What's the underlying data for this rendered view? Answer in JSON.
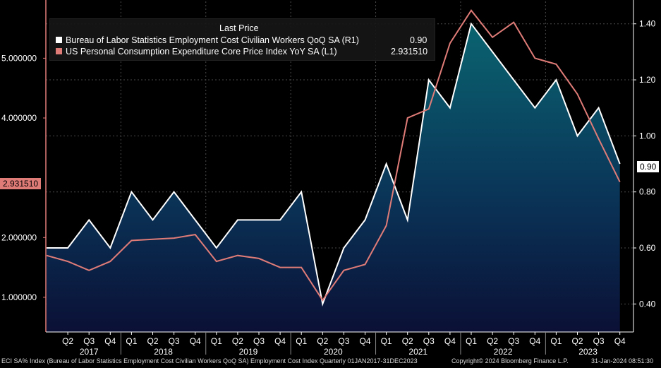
{
  "chart_data": {
    "type": "line",
    "categories": [
      "Q1 2017",
      "Q2 2017",
      "Q3 2017",
      "Q4 2017",
      "Q1 2018",
      "Q2 2018",
      "Q3 2018",
      "Q4 2018",
      "Q1 2019",
      "Q2 2019",
      "Q3 2019",
      "Q4 2019",
      "Q1 2020",
      "Q2 2020",
      "Q3 2020",
      "Q4 2020",
      "Q1 2021",
      "Q2 2021",
      "Q3 2021",
      "Q4 2021",
      "Q1 2022",
      "Q2 2022",
      "Q3 2022",
      "Q4 2022",
      "Q1 2023",
      "Q2 2023",
      "Q3 2023",
      "Q4 2023"
    ],
    "x_tick_labels": [
      "",
      "Q2",
      "Q3",
      "Q4",
      "Q1",
      "Q2",
      "Q3",
      "Q4",
      "Q1",
      "Q2",
      "Q3",
      "Q4",
      "Q1",
      "Q2",
      "Q3",
      "Q4",
      "Q1",
      "Q2",
      "Q3",
      "Q4",
      "Q1",
      "Q2",
      "Q3",
      "Q4",
      "Q1",
      "Q2",
      "Q3",
      "Q4"
    ],
    "years": [
      {
        "label": "2017",
        "center_index": 2
      },
      {
        "label": "2018",
        "center_index": 5.5
      },
      {
        "label": "2019",
        "center_index": 9.5
      },
      {
        "label": "2020",
        "center_index": 13.5
      },
      {
        "label": "2021",
        "center_index": 17.5
      },
      {
        "label": "2022",
        "center_index": 21.5
      },
      {
        "label": "2023",
        "center_index": 25.5
      }
    ],
    "series": [
      {
        "name": "Bureau of Labor Statistics Employment Cost Civilian Workers QoQ SA  (R1)",
        "axis": "right",
        "color": "#ffffff",
        "last": "0.90",
        "values": [
          0.6,
          0.6,
          0.7,
          0.6,
          0.8,
          0.7,
          0.8,
          0.7,
          0.6,
          0.7,
          0.7,
          0.7,
          0.8,
          0.4,
          0.6,
          0.7,
          0.9,
          0.7,
          1.2,
          1.1,
          1.4,
          1.3,
          1.2,
          1.1,
          1.2,
          1.0,
          1.1,
          0.9
        ]
      },
      {
        "name": "US Personal Consumption Expenditure Core Price Index YoY SA  (L1)",
        "axis": "left",
        "color": "#e07c78",
        "last": "2.931510",
        "values": [
          1.7,
          1.6,
          1.45,
          1.6,
          1.95,
          1.97,
          1.99,
          2.05,
          1.6,
          1.7,
          1.65,
          1.5,
          1.5,
          0.95,
          1.45,
          1.55,
          2.2,
          4.0,
          4.15,
          5.25,
          5.8,
          5.35,
          5.6,
          5.0,
          4.9,
          4.4,
          3.65,
          2.93
        ]
      }
    ],
    "left_axis": {
      "ylim": [
        0.42,
        5.95
      ],
      "ticks": [
        {
          "v": 1,
          "label": "1.000000"
        },
        {
          "v": 2,
          "label": "2.000000"
        },
        {
          "v": 4,
          "label": "4.000000"
        },
        {
          "v": 5,
          "label": "5.000000"
        }
      ]
    },
    "right_axis": {
      "ylim": [
        0.3,
        1.48
      ],
      "ticks": [
        {
          "v": 0.4,
          "label": "0.40"
        },
        {
          "v": 0.6,
          "label": "0.60"
        },
        {
          "v": 0.8,
          "label": "0.80"
        },
        {
          "v": 1.0,
          "label": "1.00"
        },
        {
          "v": 1.2,
          "label": "1.20"
        },
        {
          "v": 1.4,
          "label": "1.40"
        }
      ]
    },
    "legend": {
      "title": "Last Price",
      "placement": "top-left"
    },
    "grid": true
  },
  "footer": {
    "left": "ECI SA% Index (Bureau of Labor Statistics Employment Cost Civilian Workers QoQ SA) Employment Cost Index  Quarterly 01JAN2017-31DEC2023",
    "middle": "Copyright© 2024 Bloomberg Finance L.P.",
    "right": "31-Jan-2024 08:51:30"
  }
}
